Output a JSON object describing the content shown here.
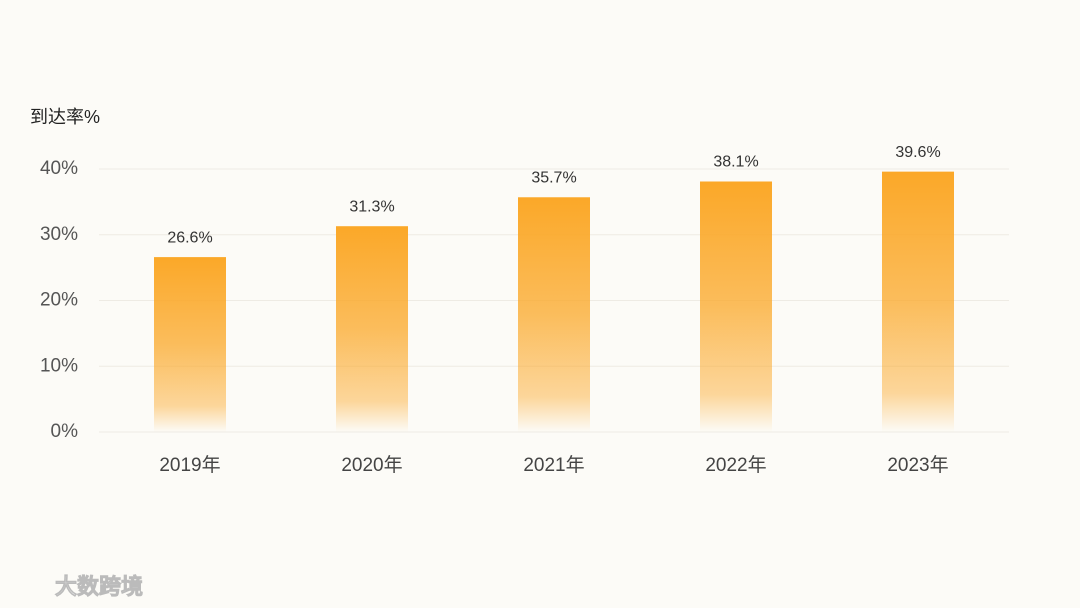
{
  "chart_data": {
    "type": "bar",
    "y_label": "到达率%",
    "categories": [
      "2019年",
      "2020年",
      "2021年",
      "2022年",
      "2023年"
    ],
    "values": [
      26.6,
      31.3,
      35.7,
      38.1,
      39.6
    ],
    "value_labels": [
      "26.6%",
      "31.3%",
      "35.7%",
      "38.1%",
      "39.6%"
    ],
    "color": "#fba828",
    "ylim": [
      0,
      40
    ],
    "yticks": [
      {
        "value": 0,
        "label": "0%"
      },
      {
        "value": 10,
        "label": "10%"
      },
      {
        "value": 20,
        "label": "20%"
      },
      {
        "value": 30,
        "label": "30%"
      },
      {
        "value": 40,
        "label": "40%"
      }
    ],
    "grid": true
  },
  "watermark": "大数跨境"
}
